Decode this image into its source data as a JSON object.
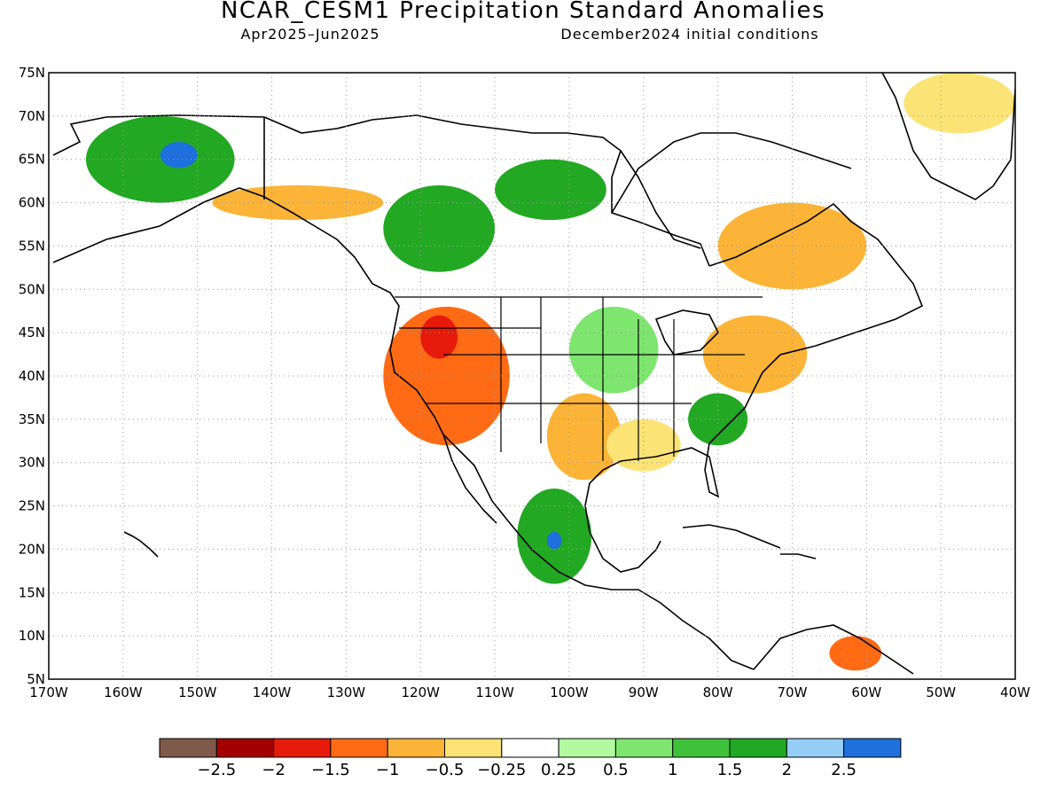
{
  "title": "NCAR_CESM1 Precipitation Standard Anomalies",
  "subtitle_left": "Apr2025–Jun2025",
  "subtitle_right": "December2024 initial conditions",
  "map": {
    "projection": "equirectangular",
    "lon_range": [
      -170,
      -40
    ],
    "lat_range": [
      5,
      75
    ],
    "grid": "dotted",
    "lat_ticks": [
      "75N",
      "70N",
      "65N",
      "60N",
      "55N",
      "50N",
      "45N",
      "40N",
      "35N",
      "30N",
      "25N",
      "20N",
      "15N",
      "10N",
      "5N"
    ],
    "lon_ticks": [
      "170W",
      "160W",
      "150W",
      "140W",
      "130W",
      "120W",
      "110W",
      "100W",
      "90W",
      "80W",
      "70W",
      "60W",
      "50W",
      "40W"
    ],
    "regions": [
      {
        "name": "alaska-wet",
        "lon": [
          -165,
          -145
        ],
        "lat": [
          60,
          70
        ],
        "category": 1.5
      },
      {
        "name": "alaska-wet-core",
        "lon": [
          -155,
          -150
        ],
        "lat": [
          64,
          67
        ],
        "category": 2.5
      },
      {
        "name": "canada-nw-wet",
        "lon": [
          -125,
          -110
        ],
        "lat": [
          52,
          62
        ],
        "category": 1.5
      },
      {
        "name": "hudson-wet",
        "lon": [
          -110,
          -95
        ],
        "lat": [
          58,
          65
        ],
        "category": 1.5
      },
      {
        "name": "se-alaska-dry",
        "lon": [
          -148,
          -125
        ],
        "lat": [
          58,
          62
        ],
        "category": -1
      },
      {
        "name": "us-west-dry",
        "lon": [
          -125,
          -108
        ],
        "lat": [
          32,
          48
        ],
        "category": -1.5
      },
      {
        "name": "great-basin-dry-core",
        "lon": [
          -120,
          -115
        ],
        "lat": [
          42,
          47
        ],
        "category": -2
      },
      {
        "name": "southern-plains-dry",
        "lon": [
          -103,
          -93
        ],
        "lat": [
          28,
          38
        ],
        "category": -1
      },
      {
        "name": "gulf-coast-dry",
        "lon": [
          -95,
          -85
        ],
        "lat": [
          29,
          35
        ],
        "category": -0.5
      },
      {
        "name": "northeast-dry",
        "lon": [
          -82,
          -68
        ],
        "lat": [
          38,
          47
        ],
        "category": -1
      },
      {
        "name": "quebec-labrador-dry",
        "lon": [
          -80,
          -60
        ],
        "lat": [
          50,
          60
        ],
        "category": -1
      },
      {
        "name": "se-us-wet",
        "lon": [
          -84,
          -76
        ],
        "lat": [
          32,
          38
        ],
        "category": 1.5
      },
      {
        "name": "mexico-wet",
        "lon": [
          -107,
          -97
        ],
        "lat": [
          16,
          27
        ],
        "category": 1.5
      },
      {
        "name": "mexico-wet-core",
        "lon": [
          -103,
          -101
        ],
        "lat": [
          20,
          22
        ],
        "category": 2.5
      },
      {
        "name": "n-plains-wet",
        "lon": [
          -100,
          -88
        ],
        "lat": [
          38,
          48
        ],
        "category": 0.5
      },
      {
        "name": "greenland-dry",
        "lon": [
          -55,
          -40
        ],
        "lat": [
          68,
          75
        ],
        "category": -0.5
      },
      {
        "name": "venezuela-dry",
        "lon": [
          -65,
          -58
        ],
        "lat": [
          6,
          10
        ],
        "category": -1.5
      }
    ]
  },
  "colorbar": {
    "colors": [
      "#7f5a4a",
      "#a50000",
      "#e61a0a",
      "#ff6a14",
      "#fbb437",
      "#fce376",
      "#ffffff",
      "#b2f99f",
      "#7ee56f",
      "#3fc13c",
      "#23a823",
      "#96cdf6",
      "#1f6fdd"
    ],
    "labels": [
      "−2.5",
      "−2",
      "−1.5",
      "−1",
      "−0.5",
      "−0.25",
      "0.25",
      "0.5",
      "1",
      "1.5",
      "2",
      "2.5"
    ]
  }
}
